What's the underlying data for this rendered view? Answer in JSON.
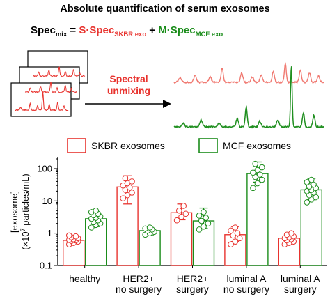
{
  "header": {
    "title": "Absolute quantification of serum exosomes",
    "equation": {
      "lhs_main": "Spec",
      "lhs_sub": "mix",
      "equals": " = ",
      "term1_main": "S·Spec",
      "term1_sub": "SKBR exo",
      "plus": " + ",
      "term2_main": "M·Spec",
      "term2_sub": "MCF exo"
    },
    "arrow_label_line1": "Spectral",
    "arrow_label_line2": "unmixing"
  },
  "colors": {
    "skbr": "#e8332e",
    "mcf": "#1a8c1a",
    "skbr_spectrum": "#f07a72",
    "mcf_spectrum": "#1f8f1f",
    "axis": "#000000"
  },
  "chart_data": {
    "type": "bar",
    "categories": [
      [
        "healthy"
      ],
      [
        "HER2+",
        "no surgery"
      ],
      [
        "HER2+",
        "surgery"
      ],
      [
        "luminal A",
        "no surgery"
      ],
      [
        "luminal A",
        "surgery"
      ]
    ],
    "ylabel_line1": "[exosome]",
    "ylabel_line2_pre": "(×10",
    "ylabel_line2_sup": "7",
    "ylabel_line2_post": " particles/mL)",
    "yscale": "log",
    "ylim": [
      0.1,
      200
    ],
    "yticks": [
      {
        "value": 0.1,
        "label": "0.1"
      },
      {
        "value": 1,
        "label": "1"
      },
      {
        "value": 10,
        "label": "10"
      },
      {
        "value": 100,
        "label": "100"
      }
    ],
    "legend_position": "top",
    "series": [
      {
        "name": "SKBR exosomes",
        "color_key": "skbr",
        "values": [
          0.6,
          27,
          4.3,
          0.9,
          0.7
        ],
        "error": [
          [
            0.48,
            0.8
          ],
          [
            8,
            60
          ],
          [
            2.6,
            8
          ],
          [
            0.55,
            1.6
          ],
          [
            0.5,
            1.0
          ]
        ],
        "points": [
          [
            0.45,
            0.5,
            0.55,
            0.58,
            0.6,
            0.62,
            0.65,
            0.7,
            0.75,
            0.8,
            0.85
          ],
          [
            12,
            15,
            18,
            22,
            26,
            30,
            35,
            40,
            50
          ],
          [
            2.5,
            3.2,
            4.0,
            5.0,
            7.0
          ],
          [
            0.45,
            0.55,
            0.7,
            0.85,
            1.0,
            1.2,
            1.5
          ],
          [
            0.45,
            0.5,
            0.55,
            0.6,
            0.65,
            0.7,
            0.75,
            0.8,
            0.9,
            1.0
          ]
        ]
      },
      {
        "name": "MCF exosomes",
        "color_key": "mcf",
        "values": [
          2.8,
          1.2,
          2.4,
          70,
          22
        ],
        "error": [
          [
            1.6,
            4.5
          ],
          [
            0.85,
            1.5
          ],
          [
            1.4,
            6.0
          ],
          [
            38,
            160
          ],
          [
            11,
            50
          ]
        ],
        "points": [
          [
            1.5,
            1.8,
            2.0,
            2.2,
            2.5,
            2.8,
            3.0,
            3.3,
            3.6,
            4.0,
            4.5,
            5.0
          ],
          [
            0.9,
            1.0,
            1.1,
            1.2,
            1.3,
            1.4,
            1.5
          ],
          [
            1.3,
            1.6,
            2.0,
            2.4,
            3.0,
            3.5,
            4.5
          ],
          [
            25,
            35,
            45,
            55,
            65,
            75,
            90,
            110,
            140
          ],
          [
            9,
            11,
            13,
            15,
            18,
            20,
            22,
            25,
            28,
            32,
            38,
            45
          ]
        ]
      }
    ]
  }
}
